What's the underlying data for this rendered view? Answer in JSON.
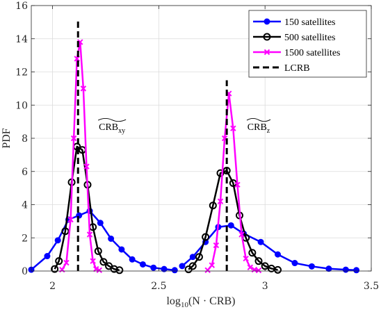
{
  "chart_data": {
    "type": "line",
    "xlabel": "log",
    "xlabel_sub": "10",
    "xlabel_rest": "(N · CRB)",
    "ylabel": "PDF",
    "xlim": [
      1.9,
      3.5
    ],
    "ylim": [
      0,
      16
    ],
    "xticks": [
      2,
      2.5,
      3,
      3.5
    ],
    "yticks": [
      0,
      2,
      4,
      6,
      8,
      10,
      12,
      14,
      16
    ],
    "grid": true,
    "legend_position": "top-right",
    "legend": [
      "150 satellites",
      "500 satellites",
      "1500 satellites",
      "LCRB"
    ],
    "annotations": [
      {
        "main": "CRB",
        "sub": "xy",
        "x": 2.28,
        "y": 8.5
      },
      {
        "main": "CRB",
        "sub": "z",
        "x": 2.97,
        "y": 8.5
      }
    ],
    "series": [
      {
        "name": "150 satellites",
        "color": "#0000ff",
        "marker": "dot",
        "segments": [
          {
            "x": [
              1.9,
              1.975,
              2.025,
              2.075,
              2.125,
              2.175,
              2.225,
              2.275,
              2.325,
              2.375,
              2.425,
              2.475,
              2.525,
              2.575
            ],
            "y": [
              0.08,
              0.9,
              1.85,
              3.1,
              3.35,
              3.62,
              2.9,
              1.95,
              1.3,
              0.7,
              0.4,
              0.2,
              0.12,
              0.05
            ]
          },
          {
            "x": [
              2.61,
              2.66,
              2.72,
              2.78,
              2.84,
              2.9,
              2.98,
              3.06,
              3.14,
              3.22,
              3.3,
              3.38,
              3.43
            ],
            "y": [
              0.3,
              0.85,
              1.75,
              2.65,
              2.75,
              2.25,
              1.75,
              1.0,
              0.48,
              0.28,
              0.14,
              0.08,
              0.05
            ]
          }
        ]
      },
      {
        "name": "500 satellites",
        "color": "#000000",
        "marker": "circle",
        "segments": [
          {
            "x": [
              2.01,
              2.03,
              2.06,
              2.09,
              2.115,
              2.14,
              2.165,
              2.19,
              2.215,
              2.24,
              2.265,
              2.29,
              2.315
            ],
            "y": [
              0.12,
              0.6,
              2.4,
              5.35,
              7.5,
              7.3,
              5.2,
              2.65,
              1.2,
              0.55,
              0.3,
              0.12,
              0.05
            ]
          },
          {
            "x": [
              2.64,
              2.66,
              2.69,
              2.72,
              2.755,
              2.79,
              2.82,
              2.85,
              2.88,
              2.91,
              2.94,
              2.97,
              3.0,
              3.03,
              3.06
            ],
            "y": [
              0.1,
              0.3,
              0.85,
              2.05,
              3.95,
              5.9,
              6.05,
              5.3,
              3.35,
              2.0,
              1.1,
              0.6,
              0.3,
              0.15,
              0.07
            ]
          }
        ]
      },
      {
        "name": "1500 satellites",
        "color": "#ff00ff",
        "marker": "x",
        "segments": [
          {
            "x": [
              2.045,
              2.065,
              2.085,
              2.1,
              2.115,
              2.13,
              2.145,
              2.16,
              2.175,
              2.19,
              2.205,
              2.22
            ],
            "y": [
              0.08,
              0.5,
              3.1,
              8.0,
              12.8,
              13.8,
              11.0,
              6.3,
              2.2,
              0.6,
              0.12,
              0.05
            ]
          },
          {
            "x": [
              2.73,
              2.75,
              2.77,
              2.79,
              2.81,
              2.83,
              2.85,
              2.87,
              2.89,
              2.91,
              2.93,
              2.95,
              2.97
            ],
            "y": [
              0.05,
              0.35,
              1.55,
              4.2,
              8.0,
              10.7,
              8.6,
              5.2,
              2.2,
              0.75,
              0.22,
              0.08,
              0.04
            ]
          }
        ]
      }
    ],
    "lcrb_lines": {
      "name": "LCRB",
      "color": "#000000",
      "style": "dashed",
      "lines": [
        {
          "x": 2.12,
          "y_top": 15.2
        },
        {
          "x": 2.82,
          "y_top": 11.5
        }
      ]
    }
  }
}
